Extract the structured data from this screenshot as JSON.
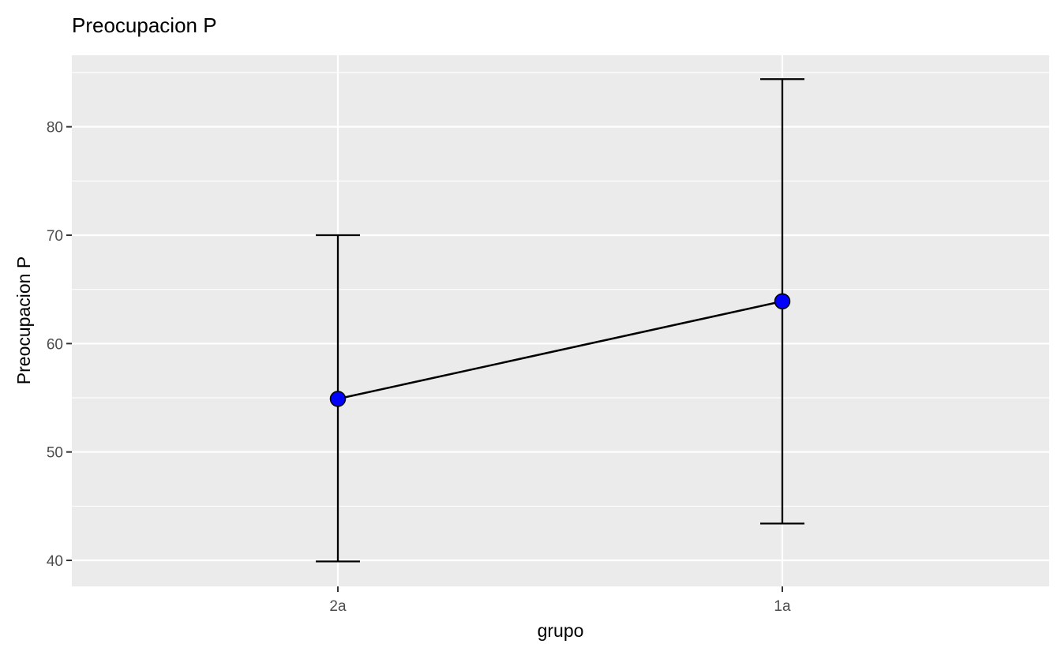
{
  "chart_data": {
    "type": "line",
    "title": "Preocupacion P",
    "xlabel": "grupo",
    "ylabel": "Preocupacion P",
    "categories": [
      "2a",
      "1a"
    ],
    "series": [
      {
        "values": [
          54.9,
          63.9
        ],
        "lower": [
          39.9,
          43.4
        ],
        "upper": [
          70.0,
          84.4
        ]
      }
    ],
    "ylim": [
      37.6,
      86.6
    ],
    "yticks": [
      40,
      50,
      60,
      70,
      80
    ],
    "ytick_labels": [
      "40",
      "50",
      "60",
      "70",
      "80"
    ],
    "grid": true,
    "legend": "none",
    "colors": {
      "panel": "#EBEBEB",
      "grid": "#FFFFFF",
      "point_fill": "#0000FF",
      "line": "#000000",
      "tick_text": "#4D4D4D"
    }
  }
}
